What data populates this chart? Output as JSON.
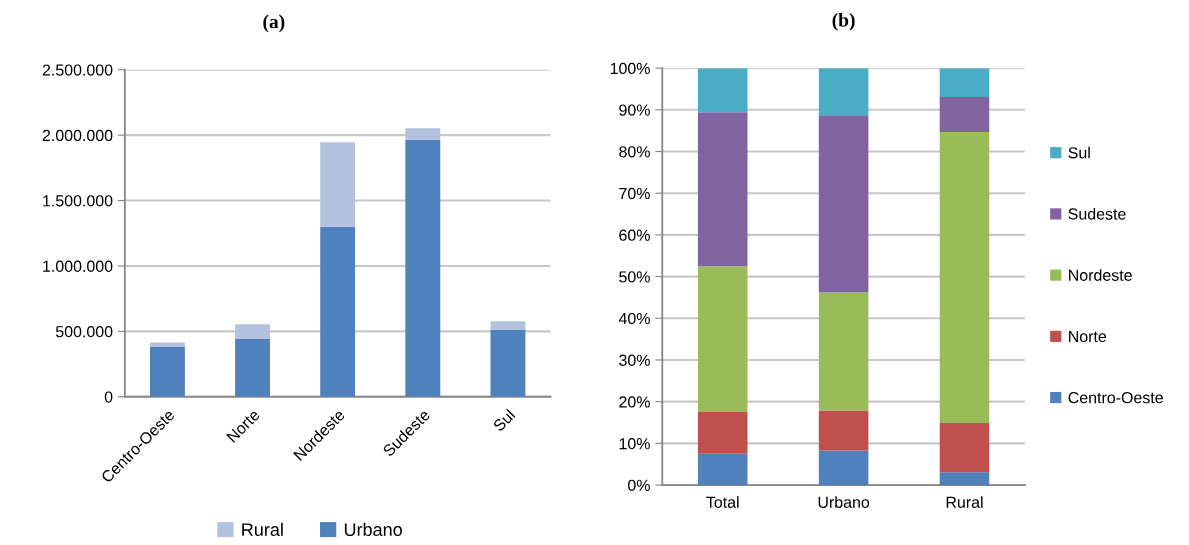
{
  "chart_data": [
    {
      "type": "bar",
      "title": "(a)",
      "categories": [
        "Centro-Oeste",
        "Norte",
        "Nordeste",
        "Sudeste",
        "Sul"
      ],
      "stacked": true,
      "series": [
        {
          "name": "Urbano",
          "color": "#4f81bd",
          "values": [
            385000,
            442000,
            1300000,
            1965000,
            514000
          ]
        },
        {
          "name": "Rural",
          "color": "#b3c2de",
          "values": [
            30000,
            113000,
            645000,
            87000,
            64000
          ]
        }
      ],
      "ylim": [
        0,
        2500000
      ],
      "yticks": [
        0,
        {
          "value": 500000,
          "label": "500.000"
        },
        {
          "value": 1000000,
          "label": "1.000.000"
        },
        {
          "value": 1500000,
          "label": "1.500.000"
        },
        {
          "value": 2000000,
          "label": "2.000.000"
        },
        {
          "value": 2500000,
          "label": "2.500.000"
        }
      ],
      "grid": "y",
      "legend": "bottom"
    },
    {
      "type": "bar",
      "title": "(b)",
      "categories": [
        "Total",
        "Urbano",
        "Rural"
      ],
      "stacked": true,
      "series": [
        {
          "name": "Centro-Oeste",
          "color": "#4f81bd",
          "values": [
            7.5,
            8.3,
            3.1
          ]
        },
        {
          "name": "Norte",
          "color": "#c0504d",
          "values": [
            10.0,
            9.6,
            11.8
          ]
        },
        {
          "name": "Nordeste",
          "color": "#9bbb59",
          "values": [
            35.0,
            28.3,
            69.8
          ]
        },
        {
          "name": "Sudeste",
          "color": "#8064a2",
          "values": [
            36.9,
            42.5,
            8.4
          ]
        },
        {
          "name": "Sul",
          "color": "#4bacc6",
          "values": [
            10.6,
            11.3,
            6.9
          ]
        }
      ],
      "ylim": [
        0,
        100
      ],
      "yticks": [
        {
          "value": 0,
          "label": "0%"
        },
        {
          "value": 10,
          "label": "10%"
        },
        {
          "value": 20,
          "label": "20%"
        },
        {
          "value": 30,
          "label": "30%"
        },
        {
          "value": 40,
          "label": "40%"
        },
        {
          "value": 50,
          "label": "50%"
        },
        {
          "value": 60,
          "label": "60%"
        },
        {
          "value": 70,
          "label": "70%"
        },
        {
          "value": 80,
          "label": "80%"
        },
        {
          "value": 90,
          "label": "90%"
        },
        {
          "value": 100,
          "label": "100%"
        }
      ],
      "grid": "y",
      "legend": "right"
    }
  ]
}
